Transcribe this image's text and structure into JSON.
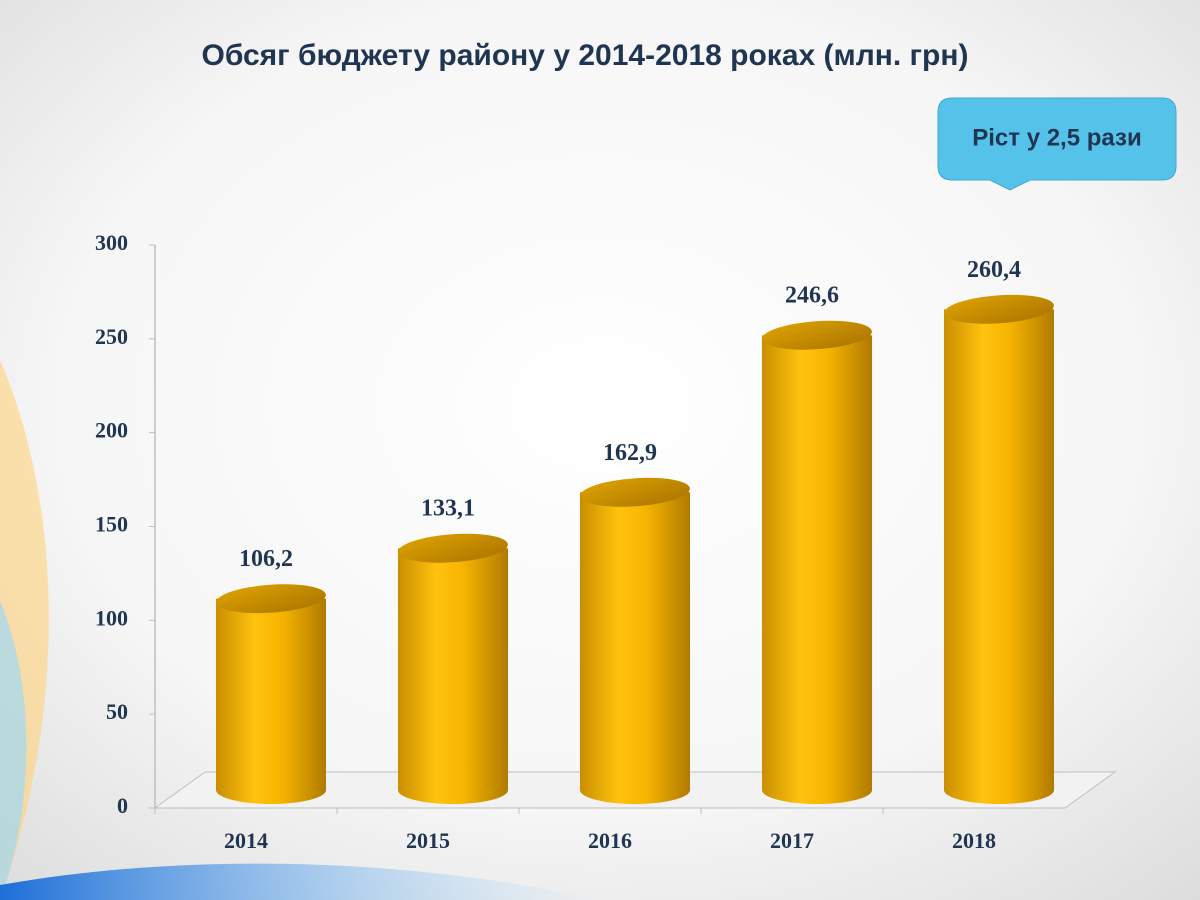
{
  "chart_data": {
    "type": "bar",
    "title": "Обсяг бюджету району у 2014-2018 роках (млн. грн)",
    "annotation": "Ріст у 2,5 рази",
    "categories": [
      "2014",
      "2015",
      "2016",
      "2017",
      "2018"
    ],
    "values": [
      106.2,
      133.1,
      162.9,
      246.6,
      260.4
    ],
    "value_labels": [
      "106,2",
      "133,1",
      "162,9",
      "246,6",
      "260,4"
    ],
    "color": "#f5b800",
    "ylim": [
      0,
      300
    ],
    "yticks": [
      0,
      50,
      100,
      150,
      200,
      250,
      300
    ],
    "grid": false
  }
}
